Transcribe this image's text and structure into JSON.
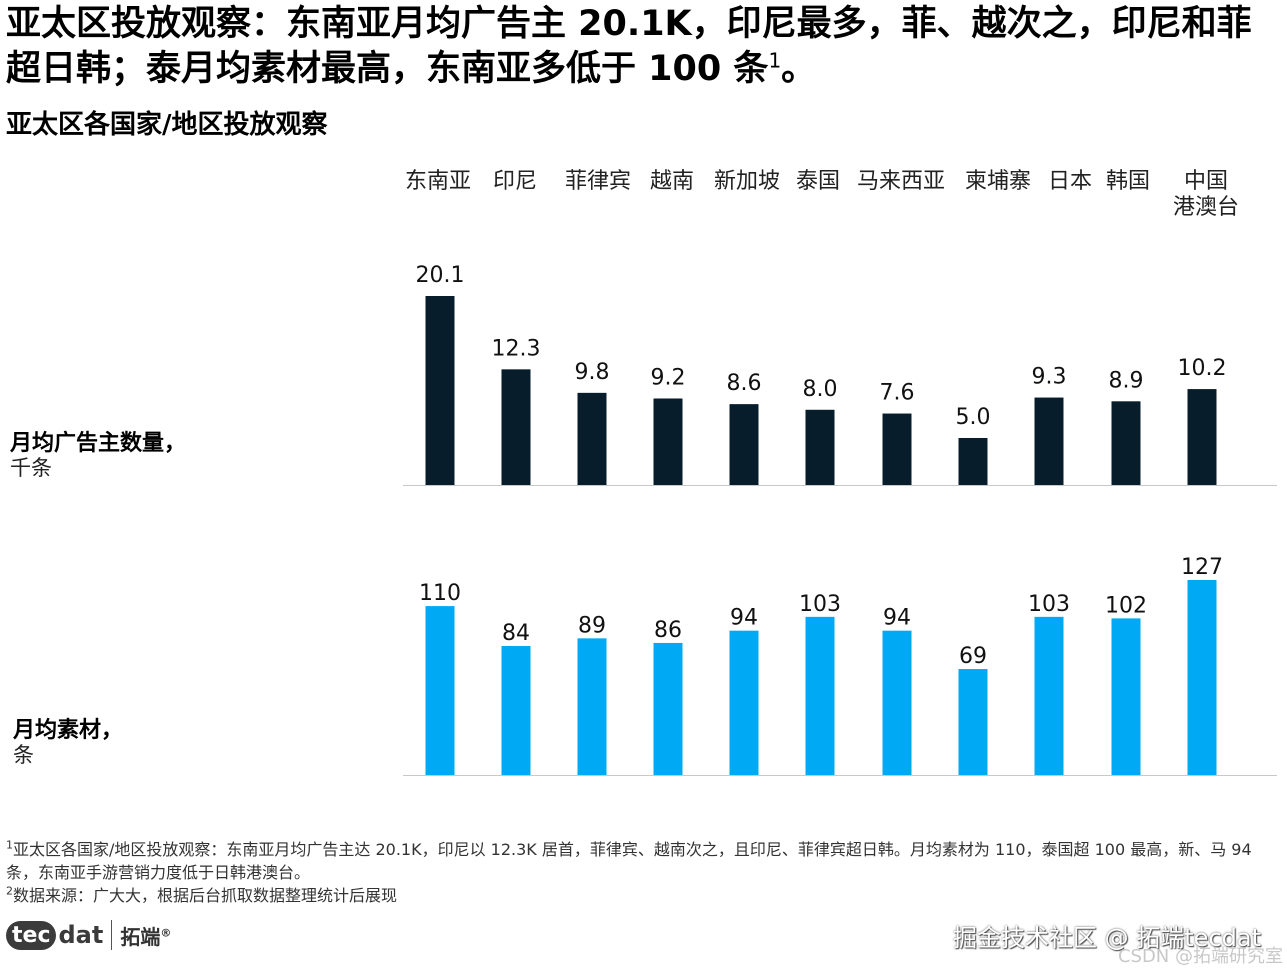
{
  "headline": {
    "text": "亚太区投放观察：东南亚月均广告主 20.1K，印尼最多，菲、越次之，印尼和菲超日韩；泰月均素材最高，东南亚多低于 100 条",
    "sup": "1",
    "end": "。"
  },
  "subtitle": "亚太区各国家/地区投放观察",
  "chart_data": [
    {
      "type": "bar",
      "title": "月均广告主数量，千条",
      "ylabel": "月均广告主数量，",
      "unit": "千条",
      "categories": [
        "东南亚",
        "印尼",
        "菲律宾",
        "越南",
        "新加坡",
        "泰国",
        "马来西亚",
        "柬埔寨",
        "日本",
        "韩国",
        "中国港澳台"
      ],
      "values": [
        20.1,
        12.3,
        9.8,
        9.2,
        8.6,
        8.0,
        7.6,
        5.0,
        9.3,
        8.9,
        10.2
      ],
      "value_labels": [
        "20.1",
        "12.3",
        "9.8",
        "9.2",
        "8.6",
        "8.0",
        "7.6",
        "5.0",
        "9.3",
        "8.9",
        "10.2"
      ],
      "ylim": [
        0,
        20.1
      ],
      "color": "#071D2B"
    },
    {
      "type": "bar",
      "title": "月均素材，条",
      "ylabel": "月均素材，",
      "unit": "条",
      "categories": [
        "东南亚",
        "印尼",
        "菲律宾",
        "越南",
        "新加坡",
        "泰国",
        "马来西亚",
        "柬埔寨",
        "日本",
        "韩国",
        "中国港澳台"
      ],
      "values": [
        110,
        84,
        89,
        86,
        94,
        103,
        94,
        69,
        103,
        102,
        127
      ],
      "value_labels": [
        "110",
        "84",
        "89",
        "86",
        "94",
        "103",
        "94",
        "69",
        "103",
        "102",
        "127"
      ],
      "ylim": [
        0,
        127
      ],
      "color": "#00A9F4"
    }
  ],
  "category_header": [
    {
      "lines": [
        "东南亚"
      ]
    },
    {
      "lines": [
        "印尼"
      ]
    },
    {
      "lines": [
        "菲律宾"
      ]
    },
    {
      "lines": [
        "越南"
      ]
    },
    {
      "lines": [
        "新加坡"
      ]
    },
    {
      "lines": [
        "泰国"
      ]
    },
    {
      "lines": [
        "马来西亚"
      ]
    },
    {
      "lines": [
        "柬埔寨"
      ]
    },
    {
      "lines": [
        "日本"
      ]
    },
    {
      "lines": [
        "韩国"
      ]
    },
    {
      "lines": [
        "中国",
        "港澳台"
      ]
    }
  ],
  "footnotes": [
    {
      "sup": "1",
      "text": "亚太区各国家/地区投放观察：东南亚月均广告主达 20.1K，印尼以 12.3K 居首，菲律宾、越南次之，且印尼、菲律宾超日韩。月均素材为 110，泰国超 100 最高，新、马 94 条，东南亚手游营销力度低于日韩港澳台。"
    },
    {
      "sup": "2",
      "text": "数据来源：广大大，根据后台抓取数据整理统计后展现"
    }
  ],
  "logo": {
    "bubble": "tec",
    "dat": "dat",
    "cn": "拓端",
    "reg": "®"
  },
  "watermark": "掘金技术社区 @ 拓端tecdat",
  "watermark2": "CSDN @拓端研究室"
}
